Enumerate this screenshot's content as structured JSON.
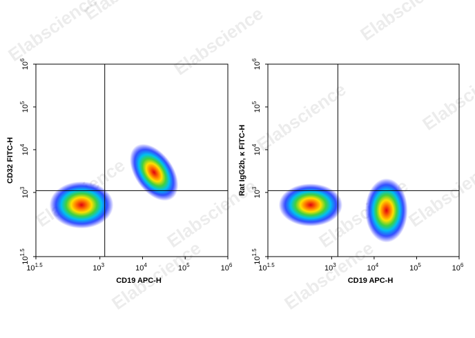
{
  "watermark": "Elabscience",
  "chart_data": [
    {
      "type": "density",
      "x_label": "CD19 APC-H",
      "y_label": "CD32 FITC-H",
      "log_scale": true,
      "xlim": [
        31.6228,
        1000000
      ],
      "ylim": [
        31.6228,
        1000000
      ],
      "xticks": [
        {
          "value": 31.6228,
          "label": "10",
          "power": "1.5"
        },
        {
          "value": 1000,
          "label": "10",
          "power": "3"
        },
        {
          "value": 10000,
          "label": "10",
          "power": "4"
        },
        {
          "value": 100000,
          "label": "10",
          "power": "5"
        },
        {
          "value": 1000000,
          "label": "10",
          "power": "6"
        }
      ],
      "yticks": [
        {
          "value": 31.6228,
          "label": "10",
          "power": "1.5"
        },
        {
          "value": 1000,
          "label": "10",
          "power": "3"
        },
        {
          "value": 10000,
          "label": "10",
          "power": "4"
        },
        {
          "value": 100000,
          "label": "10",
          "power": "5"
        },
        {
          "value": 1000000,
          "label": "10",
          "power": "6"
        }
      ],
      "gate": {
        "x": 1300,
        "y": 1100
      },
      "populations": [
        {
          "x": 370,
          "y": 510,
          "sx": 0.75,
          "sy": 0.55,
          "angle": 0
        },
        {
          "x": 18600,
          "y": 2950,
          "sx": 0.45,
          "sy": 0.75,
          "angle": 35
        }
      ]
    },
    {
      "type": "density",
      "x_label": "CD19 APC-H",
      "y_label": "Rat IgG2b, κ FITC-H",
      "log_scale": true,
      "xlim": [
        31.6228,
        1000000
      ],
      "ylim": [
        31.6228,
        1000000
      ],
      "xticks": [
        {
          "value": 31.6228,
          "label": "10",
          "power": "1.5"
        },
        {
          "value": 1000,
          "label": "10",
          "power": "3"
        },
        {
          "value": 10000,
          "label": "10",
          "power": "4"
        },
        {
          "value": 100000,
          "label": "10",
          "power": "5"
        },
        {
          "value": 1000000,
          "label": "10",
          "power": "6"
        }
      ],
      "yticks": [
        {
          "value": 31.6228,
          "label": "10",
          "power": "1.5"
        },
        {
          "value": 1000,
          "label": "10",
          "power": "3"
        },
        {
          "value": 10000,
          "label": "10",
          "power": "4"
        },
        {
          "value": 100000,
          "label": "10",
          "power": "5"
        },
        {
          "value": 1000000,
          "label": "10",
          "power": "6"
        }
      ],
      "gate": {
        "x": 1400,
        "y": 1100
      },
      "populations": [
        {
          "x": 320,
          "y": 510,
          "sx": 0.75,
          "sy": 0.5,
          "angle": 0
        },
        {
          "x": 19500,
          "y": 380,
          "sx": 0.5,
          "sy": 0.75,
          "angle": 0
        }
      ]
    }
  ]
}
